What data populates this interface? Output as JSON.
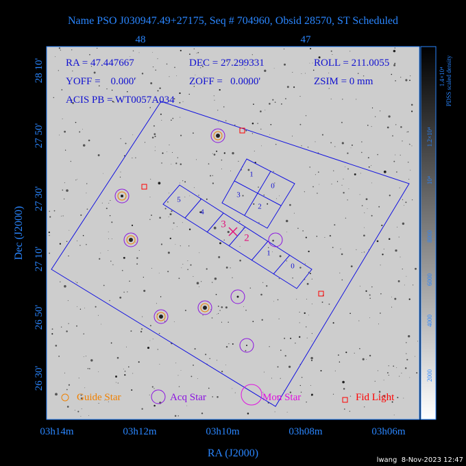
{
  "header": {
    "title": "Name PSO J030947.49+27175, Seq # 704960, Obsid 28570, ST Scheduled"
  },
  "top_axis": {
    "ticks": [
      "48",
      "47"
    ]
  },
  "info": {
    "ra": "RA = 47.447667",
    "dec": "DEC = 27.299331",
    "roll": "ROLL = 211.0055",
    "yoff": "YOFF =    0.000'",
    "zoff": "ZOFF =   0.0000'",
    "zsim": "ZSIM = 0 mm",
    "acis": "ACIS PB = WT0057A034"
  },
  "y_axis": {
    "label": "Dec (J2000)",
    "ticks": [
      "28 10'",
      "27 50'",
      "27 30'",
      "27 10'",
      "26 50'",
      "26 30'"
    ]
  },
  "x_axis": {
    "label": "RA (J2000)",
    "ticks": [
      "03h14m",
      "03h12m",
      "03h10m",
      "03h08m",
      "03h06m"
    ]
  },
  "chips_i": [
    "1",
    "0",
    "3",
    "2"
  ],
  "chips_s": [
    "5",
    "4",
    "3",
    "2",
    "1",
    "0"
  ],
  "legend": [
    "Guide Star",
    "Acq Star",
    "Mon Star",
    "Fid Light"
  ],
  "colorbar": {
    "label": "PDSS scaled density",
    "ticks": [
      "2000",
      "4000",
      "6000",
      "8000",
      "10⁴",
      "1.2×10⁴",
      "1.4×10⁴"
    ]
  },
  "footer": "lwang  8-Nov-2023 12:47"
}
